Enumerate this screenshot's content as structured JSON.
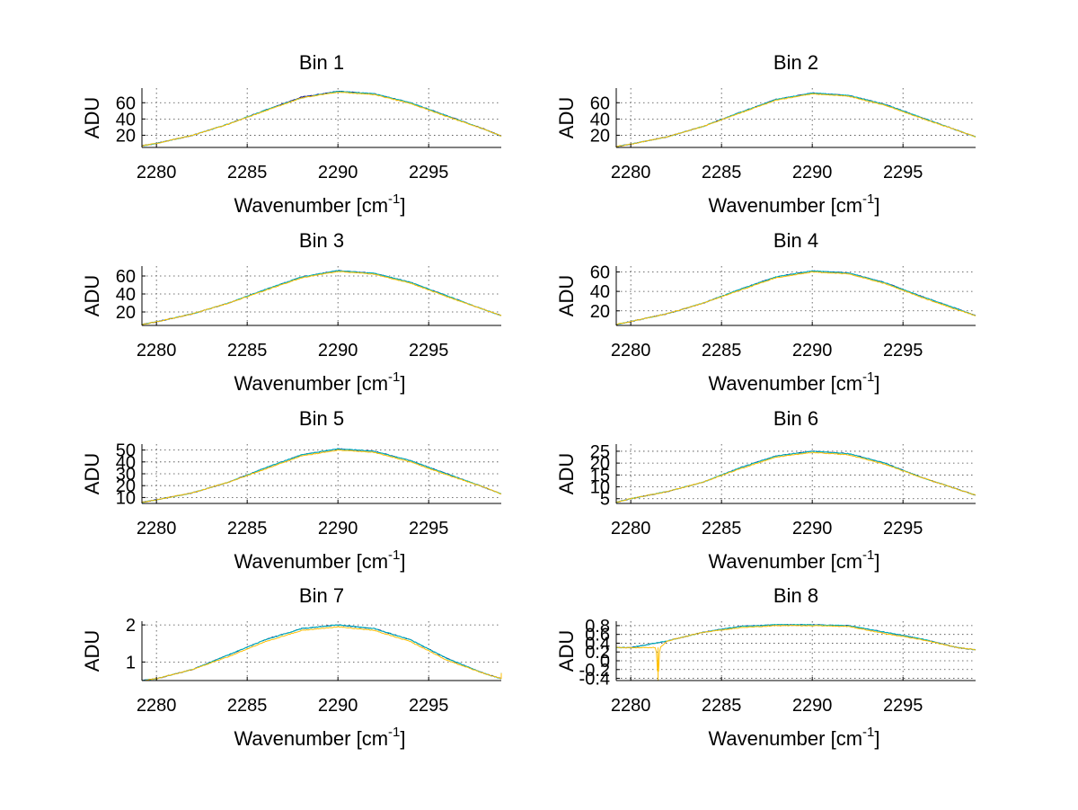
{
  "chart_data": [
    {
      "type": "line",
      "title": "Bin 1",
      "xlabel": "Wavenumber [cm",
      "xlabel_sup": "-1",
      "xlabel_end": "]",
      "ylabel": "ADU",
      "xlim": [
        2279.2,
        2299
      ],
      "ylim": [
        5,
        78
      ],
      "xticks": [
        2280,
        2285,
        2290,
        2295
      ],
      "yticks": [
        20,
        40,
        60
      ],
      "grid": true,
      "series": [
        {
          "color": "#000080",
          "x": [
            2279.2,
            2280,
            2282,
            2284,
            2286,
            2288,
            2290,
            2292,
            2294,
            2296,
            2298,
            2299
          ],
          "y": [
            7,
            10,
            20,
            34,
            51,
            67,
            74,
            71,
            60,
            44,
            28,
            19
          ]
        },
        {
          "color": "#00bfbf",
          "x": [
            2279.2,
            2280,
            2282,
            2284,
            2286,
            2288,
            2290,
            2292,
            2294,
            2296,
            2298,
            2299
          ],
          "y": [
            7,
            10,
            20,
            34,
            51,
            66,
            74,
            71,
            60,
            44,
            28,
            19
          ]
        },
        {
          "color": "#ffbf00",
          "x": [
            2279.2,
            2280,
            2282,
            2284,
            2286,
            2288,
            2290,
            2292,
            2294,
            2296,
            2298,
            2299
          ],
          "y": [
            7,
            10,
            20,
            34,
            50,
            66,
            73,
            70,
            59,
            43,
            28,
            19
          ]
        }
      ]
    },
    {
      "type": "line",
      "title": "Bin 2",
      "xlabel": "Wavenumber [cm",
      "xlabel_sup": "-1",
      "xlabel_end": "]",
      "ylabel": "ADU",
      "xlim": [
        2279.2,
        2299
      ],
      "ylim": [
        5,
        78
      ],
      "xticks": [
        2280,
        2285,
        2290,
        2295
      ],
      "yticks": [
        20,
        40,
        60
      ],
      "grid": true,
      "series": [
        {
          "color": "#000080",
          "x": [
            2279.2,
            2280,
            2282,
            2284,
            2286,
            2288,
            2290,
            2292,
            2294,
            2296,
            2298,
            2299
          ],
          "y": [
            6,
            9,
            18,
            31,
            48,
            64,
            72,
            69,
            58,
            42,
            26,
            18
          ]
        },
        {
          "color": "#00bfbf",
          "x": [
            2279.2,
            2280,
            2282,
            2284,
            2286,
            2288,
            2290,
            2292,
            2294,
            2296,
            2298,
            2299
          ],
          "y": [
            6,
            9,
            18,
            31,
            48,
            64,
            72,
            69,
            58,
            42,
            26,
            18
          ]
        },
        {
          "color": "#ffbf00",
          "x": [
            2279.2,
            2280,
            2282,
            2284,
            2286,
            2288,
            2290,
            2292,
            2294,
            2296,
            2298,
            2299
          ],
          "y": [
            6,
            9,
            18,
            31,
            47,
            63,
            71,
            68,
            57,
            41,
            26,
            18
          ]
        }
      ]
    },
    {
      "type": "line",
      "title": "Bin 3",
      "xlabel": "Wavenumber [cm",
      "xlabel_sup": "-1",
      "xlabel_end": "]",
      "ylabel": "ADU",
      "xlim": [
        2279.2,
        2299
      ],
      "ylim": [
        5,
        71
      ],
      "xticks": [
        2280,
        2285,
        2290,
        2295
      ],
      "yticks": [
        20,
        40,
        60
      ],
      "grid": true,
      "series": [
        {
          "color": "#000080",
          "x": [
            2279.2,
            2280,
            2282,
            2284,
            2286,
            2288,
            2290,
            2292,
            2294,
            2296,
            2298,
            2299
          ],
          "y": [
            6,
            9,
            18,
            30,
            45,
            59,
            66,
            63,
            53,
            38,
            23,
            16
          ]
        },
        {
          "color": "#00bfbf",
          "x": [
            2279.2,
            2280,
            2282,
            2284,
            2286,
            2288,
            2290,
            2292,
            2294,
            2296,
            2298,
            2299
          ],
          "y": [
            6,
            9,
            18,
            30,
            45,
            59,
            66,
            63,
            53,
            38,
            23,
            16
          ]
        },
        {
          "color": "#ffbf00",
          "x": [
            2279.2,
            2280,
            2282,
            2284,
            2286,
            2288,
            2290,
            2292,
            2294,
            2296,
            2298,
            2299
          ],
          "y": [
            6,
            9,
            18,
            30,
            44,
            58,
            65,
            62,
            52,
            37,
            23,
            16
          ]
        }
      ]
    },
    {
      "type": "line",
      "title": "Bin 4",
      "xlabel": "Wavenumber [cm",
      "xlabel_sup": "-1",
      "xlabel_end": "]",
      "ylabel": "ADU",
      "xlim": [
        2279.2,
        2299
      ],
      "ylim": [
        5,
        66
      ],
      "xticks": [
        2280,
        2285,
        2290,
        2295
      ],
      "yticks": [
        20,
        40,
        60
      ],
      "grid": true,
      "series": [
        {
          "color": "#000080",
          "x": [
            2279.2,
            2280,
            2282,
            2284,
            2286,
            2288,
            2290,
            2292,
            2294,
            2296,
            2298,
            2299
          ],
          "y": [
            6,
            9,
            17,
            28,
            42,
            55,
            61,
            59,
            49,
            35,
            22,
            15
          ]
        },
        {
          "color": "#00bfbf",
          "x": [
            2279.2,
            2280,
            2282,
            2284,
            2286,
            2288,
            2290,
            2292,
            2294,
            2296,
            2298,
            2299
          ],
          "y": [
            6,
            9,
            17,
            28,
            42,
            55,
            61,
            59,
            49,
            35,
            22,
            15
          ]
        },
        {
          "color": "#ffbf00",
          "x": [
            2279.2,
            2280,
            2282,
            2284,
            2286,
            2288,
            2290,
            2292,
            2294,
            2296,
            2298,
            2299
          ],
          "y": [
            6,
            9,
            17,
            28,
            41,
            54,
            60,
            58,
            48,
            34,
            21,
            15
          ]
        }
      ]
    },
    {
      "type": "line",
      "title": "Bin 5",
      "xlabel": "Wavenumber [cm",
      "xlabel_sup": "-1",
      "xlabel_end": "]",
      "ylabel": "ADU",
      "xlim": [
        2279.2,
        2299
      ],
      "ylim": [
        5,
        55
      ],
      "xticks": [
        2280,
        2285,
        2290,
        2295
      ],
      "yticks": [
        10,
        20,
        30,
        40,
        50
      ],
      "grid": true,
      "series": [
        {
          "color": "#000080",
          "x": [
            2279.2,
            2280,
            2282,
            2284,
            2286,
            2288,
            2290,
            2292,
            2294,
            2296,
            2298,
            2299
          ],
          "y": [
            6,
            8,
            14,
            23,
            35,
            46,
            51,
            49,
            41,
            30,
            19,
            13
          ]
        },
        {
          "color": "#00bfbf",
          "x": [
            2279.2,
            2280,
            2282,
            2284,
            2286,
            2288,
            2290,
            2292,
            2294,
            2296,
            2298,
            2299
          ],
          "y": [
            6,
            8,
            14,
            23,
            35,
            46,
            51,
            49,
            41,
            30,
            19,
            13
          ]
        },
        {
          "color": "#ffbf00",
          "x": [
            2279.2,
            2280,
            2282,
            2284,
            2286,
            2288,
            2290,
            2292,
            2294,
            2296,
            2298,
            2299
          ],
          "y": [
            6,
            8,
            14,
            23,
            34,
            45,
            50,
            48,
            40,
            29,
            19,
            13
          ]
        }
      ]
    },
    {
      "type": "line",
      "title": "Bin 6",
      "xlabel": "Wavenumber [cm",
      "xlabel_sup": "-1",
      "xlabel_end": "]",
      "ylabel": "ADU",
      "xlim": [
        2279.2,
        2299
      ],
      "ylim": [
        3,
        28
      ],
      "xticks": [
        2280,
        2285,
        2290,
        2295
      ],
      "yticks": [
        5,
        10,
        15,
        20,
        25
      ],
      "grid": true,
      "series": [
        {
          "color": "#000080",
          "x": [
            2279.2,
            2280,
            2282,
            2284,
            2286,
            2288,
            2290,
            2292,
            2294,
            2296,
            2298,
            2299
          ],
          "y": [
            3.5,
            5,
            8,
            12,
            18,
            23,
            25,
            24,
            20,
            14,
            9,
            6.5
          ]
        },
        {
          "color": "#00bfbf",
          "x": [
            2279.2,
            2280,
            2282,
            2284,
            2286,
            2288,
            2290,
            2292,
            2294,
            2296,
            2298,
            2299
          ],
          "y": [
            3.5,
            5,
            8,
            12,
            18,
            23,
            25,
            24,
            20,
            14,
            9,
            6.5
          ]
        },
        {
          "color": "#ffbf00",
          "x": [
            2279.2,
            2280,
            2282,
            2284,
            2286,
            2288,
            2290,
            2292,
            2294,
            2296,
            2298,
            2299
          ],
          "y": [
            3.5,
            5,
            8,
            12,
            17.5,
            22.5,
            24.5,
            23.5,
            19.5,
            14,
            9,
            6.5
          ]
        }
      ]
    },
    {
      "type": "line",
      "title": "Bin 7",
      "xlabel": "Wavenumber [cm",
      "xlabel_sup": "-1",
      "xlabel_end": "]",
      "ylabel": "ADU",
      "xlim": [
        2279.2,
        2299
      ],
      "ylim": [
        0.5,
        2.1
      ],
      "xticks": [
        2280,
        2285,
        2290,
        2295
      ],
      "yticks": [
        1,
        2
      ],
      "grid": true,
      "series": [
        {
          "color": "#000080",
          "x": [
            2279.2,
            2280,
            2282,
            2284,
            2286,
            2288,
            2290,
            2292,
            2294,
            2296,
            2298,
            2299
          ],
          "y": [
            0.5,
            0.55,
            0.8,
            1.2,
            1.6,
            1.9,
            2.0,
            1.9,
            1.6,
            1.1,
            0.7,
            0.55
          ]
        },
        {
          "color": "#00bfbf",
          "x": [
            2279.2,
            2280,
            2282,
            2284,
            2286,
            2288,
            2290,
            2292,
            2294,
            2296,
            2298,
            2299
          ],
          "y": [
            0.5,
            0.55,
            0.8,
            1.2,
            1.6,
            1.9,
            2.0,
            1.9,
            1.6,
            1.1,
            0.7,
            0.55
          ]
        },
        {
          "color": "#ffbf00",
          "x": [
            2279.2,
            2280,
            2282,
            2284,
            2286,
            2288,
            2290,
            2292,
            2294,
            2296,
            2298,
            2299
          ],
          "y": [
            0.5,
            0.55,
            0.8,
            1.15,
            1.55,
            1.85,
            1.95,
            1.85,
            1.55,
            1.05,
            0.7,
            0.55
          ]
        }
      ]
    },
    {
      "type": "line",
      "title": "Bin 8",
      "xlabel": "Wavenumber [cm",
      "xlabel_sup": "-1",
      "xlabel_end": "]",
      "ylabel": "ADU",
      "xlim": [
        2279.2,
        2299
      ],
      "ylim": [
        -0.45,
        0.9
      ],
      "xticks": [
        2280,
        2285,
        2290,
        2295
      ],
      "yticks": [
        -0.4,
        -0.2,
        0,
        0.2,
        0.4,
        0.6,
        0.8
      ],
      "ytick_labels": [
        "-0.4",
        "-0.2",
        "0",
        "0.2",
        "0.4",
        "0.6",
        "0.8"
      ],
      "grid": true,
      "series": [
        {
          "color": "#000080",
          "x": [
            2279.2,
            2280,
            2282,
            2284,
            2286,
            2288,
            2290,
            2292,
            2294,
            2296,
            2298,
            2299
          ],
          "y": [
            0.3,
            0.3,
            0.45,
            0.65,
            0.78,
            0.82,
            0.82,
            0.8,
            0.65,
            0.5,
            0.3,
            0.25
          ]
        },
        {
          "color": "#00bfbf",
          "x": [
            2279.2,
            2280,
            2282,
            2284,
            2286,
            2288,
            2290,
            2292,
            2294,
            2296,
            2298,
            2299
          ],
          "y": [
            0.3,
            0.3,
            0.45,
            0.65,
            0.78,
            0.82,
            0.82,
            0.8,
            0.65,
            0.5,
            0.3,
            0.25
          ]
        },
        {
          "color": "#ffbf00",
          "x": [
            2279.2,
            2280,
            2281.4,
            2281.5,
            2281.6,
            2282,
            2284,
            2286,
            2288,
            2290,
            2292,
            2294,
            2296,
            2298,
            2299
          ],
          "y": [
            0.3,
            0.3,
            0.3,
            -0.45,
            0.3,
            0.45,
            0.65,
            0.75,
            0.8,
            0.8,
            0.78,
            0.62,
            0.48,
            0.3,
            0.25
          ]
        }
      ]
    }
  ]
}
